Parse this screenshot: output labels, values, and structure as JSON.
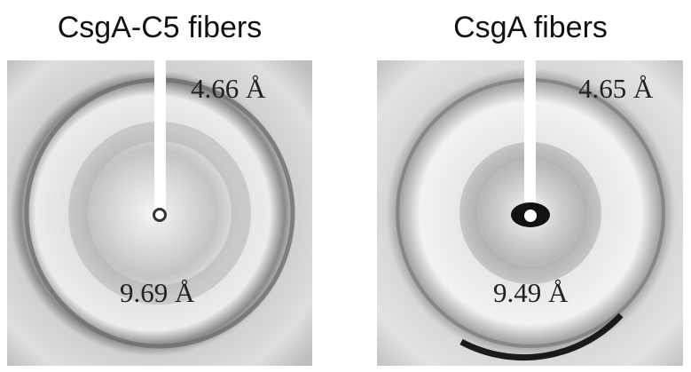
{
  "panels": [
    {
      "title": "CsgA-C5 fibers",
      "outer_label": "4.66 Å",
      "inner_label": "9.69 Å"
    },
    {
      "title": "CsgA fibers",
      "outer_label": "4.65 Å",
      "inner_label": "9.49 Å"
    }
  ]
}
